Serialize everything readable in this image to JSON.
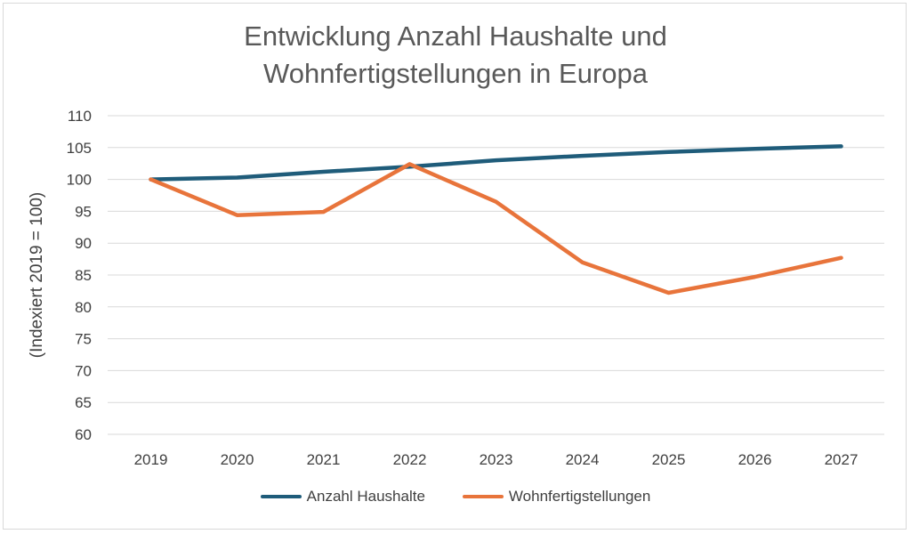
{
  "chart_data": {
    "type": "line",
    "title_line1": "Entwicklung Anzahl Haushalte und",
    "title_line2": "Wohnfertigstellungen in Europa",
    "xlabel": "",
    "ylabel": "(Indexiert 2019 = 100)",
    "categories": [
      "2019",
      "2020",
      "2021",
      "2022",
      "2023",
      "2024",
      "2025",
      "2026",
      "2027"
    ],
    "ylim": [
      60,
      110
    ],
    "yticks": [
      60,
      65,
      70,
      75,
      80,
      85,
      90,
      95,
      100,
      105,
      110
    ],
    "grid": true,
    "legend_position": "bottom",
    "series": [
      {
        "name": "Anzahl Haushalte",
        "color": "#1f5c7a",
        "values": [
          100,
          100.3,
          101.2,
          102.0,
          103.0,
          103.7,
          104.3,
          104.8,
          105.2
        ]
      },
      {
        "name": "Wohnfertigstellungen",
        "color": "#e8743b",
        "values": [
          100,
          94.4,
          94.9,
          102.4,
          96.5,
          87.0,
          82.2,
          84.7,
          87.7
        ]
      }
    ]
  }
}
